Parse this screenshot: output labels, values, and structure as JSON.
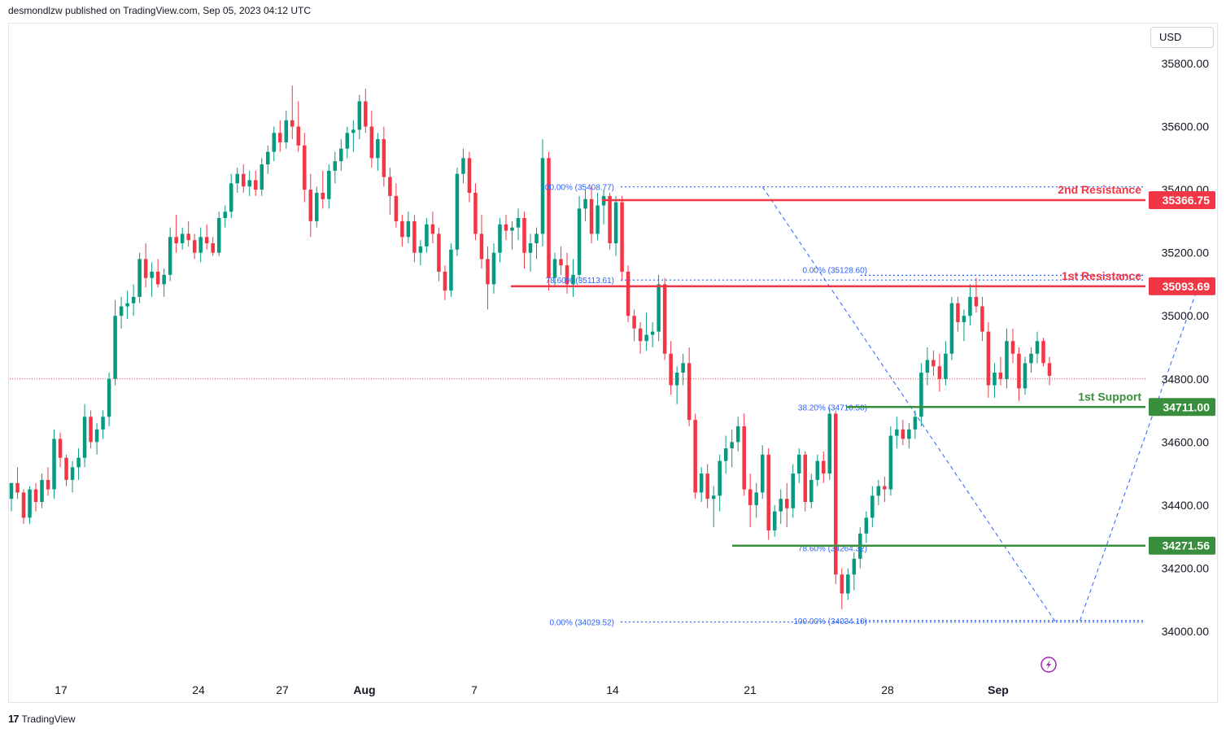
{
  "header": {
    "published": "desmondlzw published on TradingView.com, Sep 05, 2023 04:12 UTC"
  },
  "currency": "USD",
  "footer": {
    "brand": "TradingView",
    "logo_glyph": "17"
  },
  "icons": {
    "lightning": "lightning-icon"
  },
  "colors": {
    "up": "#089981",
    "down": "#f23645",
    "resistance": "#f23645",
    "support": "#388e3c",
    "fib": "#2962ff",
    "price_line": "#f23645"
  },
  "chart_data": {
    "type": "candlestick",
    "symbol_currency": "USD",
    "ylim": [
      33900,
      35900
    ],
    "y_ticks": [
      34000,
      34200,
      34400,
      34600,
      34800,
      35000,
      35200,
      35400,
      35600,
      35800
    ],
    "y_tick_labels": [
      "34000.00",
      "34200.00",
      "34400.00",
      "34600.00",
      "34800.00",
      "35000.00",
      "35200.00",
      "35400.00",
      "35600.00",
      "35800.00"
    ],
    "x_tick_labels": [
      "17",
      "24",
      "27",
      "Aug",
      "7",
      "14",
      "21",
      "28",
      "Sep"
    ],
    "current_price": 34800,
    "levels": [
      {
        "name": "2nd Resistance",
        "value": 35366.75,
        "label": "35366.75",
        "kind": "resistance"
      },
      {
        "name": "1st Resistance",
        "value": 35093.69,
        "label": "35093.69",
        "kind": "resistance"
      },
      {
        "name": "1st Support",
        "value": 34711.0,
        "label": "34711.00",
        "kind": "support"
      },
      {
        "name": "",
        "value": 34271.56,
        "label": "34271.56",
        "kind": "support"
      }
    ],
    "fib_labels": [
      {
        "text": "100.00% (35408.77)",
        "value": 35408.77
      },
      {
        "text": "78.60% (35113.61)",
        "value": 35113.61
      },
      {
        "text": "0.00% (34029.52)",
        "value": 34029.52
      },
      {
        "text": "0.00% (35128.60)",
        "value": 35128.6
      },
      {
        "text": "38.20% (34710.50)",
        "value": 34710.5
      },
      {
        "text": "78.60% (34264.32)",
        "value": 34264.32
      },
      {
        "text": "100.00% (34034.10)",
        "value": 34034.1
      }
    ],
    "candles": [
      [
        34420,
        34470,
        34380,
        34470
      ],
      [
        34470,
        34520,
        34420,
        34440
      ],
      [
        34440,
        34450,
        34340,
        34360
      ],
      [
        34360,
        34460,
        34340,
        34450
      ],
      [
        34450,
        34470,
        34380,
        34410
      ],
      [
        34410,
        34500,
        34390,
        34480
      ],
      [
        34480,
        34520,
        34430,
        34450
      ],
      [
        34450,
        34640,
        34420,
        34610
      ],
      [
        34610,
        34630,
        34520,
        34550
      ],
      [
        34550,
        34560,
        34460,
        34480
      ],
      [
        34480,
        34540,
        34440,
        34520
      ],
      [
        34520,
        34580,
        34480,
        34550
      ],
      [
        34550,
        34720,
        34520,
        34680
      ],
      [
        34680,
        34700,
        34580,
        34600
      ],
      [
        34600,
        34660,
        34560,
        34640
      ],
      [
        34640,
        34700,
        34610,
        34680
      ],
      [
        34680,
        34820,
        34650,
        34800
      ],
      [
        34800,
        35050,
        34780,
        35000
      ],
      [
        35000,
        35060,
        34960,
        35030
      ],
      [
        35030,
        35080,
        34990,
        35040
      ],
      [
        35040,
        35100,
        35000,
        35060
      ],
      [
        35060,
        35200,
        35040,
        35180
      ],
      [
        35180,
        35230,
        35090,
        35120
      ],
      [
        35120,
        35170,
        35060,
        35140
      ],
      [
        35140,
        35180,
        35090,
        35100
      ],
      [
        35100,
        35150,
        35060,
        35130
      ],
      [
        35130,
        35280,
        35110,
        35250
      ],
      [
        35250,
        35320,
        35200,
        35230
      ],
      [
        35230,
        35280,
        35210,
        35260
      ],
      [
        35260,
        35300,
        35220,
        35240
      ],
      [
        35240,
        35260,
        35180,
        35200
      ],
      [
        35200,
        35280,
        35170,
        35250
      ],
      [
        35250,
        35290,
        35210,
        35230
      ],
      [
        35230,
        35250,
        35190,
        35200
      ],
      [
        35200,
        35330,
        35190,
        35310
      ],
      [
        35310,
        35350,
        35280,
        35330
      ],
      [
        35330,
        35450,
        35310,
        35420
      ],
      [
        35420,
        35470,
        35390,
        35450
      ],
      [
        35450,
        35480,
        35390,
        35410
      ],
      [
        35410,
        35460,
        35380,
        35430
      ],
      [
        35430,
        35460,
        35380,
        35400
      ],
      [
        35400,
        35500,
        35380,
        35480
      ],
      [
        35480,
        35540,
        35450,
        35520
      ],
      [
        35520,
        35600,
        35490,
        35580
      ],
      [
        35580,
        35620,
        35520,
        35550
      ],
      [
        35550,
        35650,
        35530,
        35620
      ],
      [
        35620,
        35730,
        35560,
        35600
      ],
      [
        35600,
        35680,
        35520,
        35540
      ],
      [
        35540,
        35580,
        35360,
        35400
      ],
      [
        35400,
        35450,
        35250,
        35300
      ],
      [
        35300,
        35410,
        35280,
        35390
      ],
      [
        35390,
        35460,
        35340,
        35370
      ],
      [
        35370,
        35480,
        35340,
        35460
      ],
      [
        35460,
        35520,
        35420,
        35490
      ],
      [
        35490,
        35560,
        35460,
        35530
      ],
      [
        35530,
        35600,
        35500,
        35580
      ],
      [
        35580,
        35620,
        35520,
        35590
      ],
      [
        35590,
        35700,
        35560,
        35680
      ],
      [
        35680,
        35720,
        35580,
        35600
      ],
      [
        35600,
        35650,
        35470,
        35500
      ],
      [
        35500,
        35580,
        35460,
        35560
      ],
      [
        35560,
        35600,
        35410,
        35440
      ],
      [
        35440,
        35470,
        35320,
        35380
      ],
      [
        35380,
        35420,
        35280,
        35300
      ],
      [
        35300,
        35320,
        35220,
        35250
      ],
      [
        35250,
        35330,
        35230,
        35300
      ],
      [
        35300,
        35320,
        35170,
        35200
      ],
      [
        35200,
        35240,
        35160,
        35220
      ],
      [
        35220,
        35310,
        35200,
        35290
      ],
      [
        35290,
        35330,
        35230,
        35260
      ],
      [
        35260,
        35280,
        35110,
        35140
      ],
      [
        35140,
        35160,
        35050,
        35080
      ],
      [
        35080,
        35230,
        35060,
        35210
      ],
      [
        35210,
        35470,
        35190,
        35450
      ],
      [
        35450,
        35530,
        35420,
        35500
      ],
      [
        35500,
        35520,
        35360,
        35390
      ],
      [
        35390,
        35420,
        35240,
        35260
      ],
      [
        35260,
        35320,
        35150,
        35180
      ],
      [
        35180,
        35220,
        35020,
        35100
      ],
      [
        35100,
        35230,
        35070,
        35200
      ],
      [
        35200,
        35310,
        35170,
        35290
      ],
      [
        35290,
        35320,
        35240,
        35270
      ],
      [
        35270,
        35300,
        35210,
        35280
      ],
      [
        35280,
        35340,
        35240,
        35310
      ],
      [
        35310,
        35330,
        35150,
        35200
      ],
      [
        35200,
        35260,
        35140,
        35230
      ],
      [
        35230,
        35280,
        35180,
        35260
      ],
      [
        35260,
        35560,
        35220,
        35500
      ],
      [
        35500,
        35520,
        35080,
        35120
      ],
      [
        35120,
        35200,
        35090,
        35180
      ],
      [
        35180,
        35220,
        35130,
        35160
      ],
      [
        35160,
        35200,
        35070,
        35100
      ],
      [
        35100,
        35180,
        35060,
        35130
      ],
      [
        35130,
        35380,
        35110,
        35340
      ],
      [
        35340,
        35400,
        35300,
        35370
      ],
      [
        35370,
        35410,
        35230,
        35260
      ],
      [
        35260,
        35390,
        35240,
        35350
      ],
      [
        35350,
        35400,
        35290,
        35380
      ],
      [
        35380,
        35390,
        35210,
        35230
      ],
      [
        35230,
        35380,
        35190,
        35360
      ],
      [
        35360,
        35380,
        35110,
        35140
      ],
      [
        35140,
        35160,
        34980,
        35000
      ],
      [
        35000,
        35020,
        34920,
        34960
      ],
      [
        34960,
        34980,
        34880,
        34920
      ],
      [
        34920,
        35010,
        34890,
        34940
      ],
      [
        34940,
        34980,
        34900,
        34950
      ],
      [
        34950,
        35130,
        34920,
        35100
      ],
      [
        35100,
        35120,
        34860,
        34880
      ],
      [
        34880,
        34920,
        34750,
        34780
      ],
      [
        34780,
        34840,
        34720,
        34820
      ],
      [
        34820,
        34880,
        34780,
        34850
      ],
      [
        34850,
        34900,
        34650,
        34670
      ],
      [
        34670,
        34690,
        34420,
        34440
      ],
      [
        34440,
        34520,
        34410,
        34500
      ],
      [
        34500,
        34530,
        34390,
        34420
      ],
      [
        34420,
        34460,
        34330,
        34430
      ],
      [
        34430,
        34560,
        34380,
        34540
      ],
      [
        34540,
        34620,
        34500,
        34580
      ],
      [
        34580,
        34640,
        34520,
        34600
      ],
      [
        34600,
        34680,
        34570,
        34650
      ],
      [
        34650,
        34690,
        34430,
        34450
      ],
      [
        34450,
        34500,
        34330,
        34400
      ],
      [
        34400,
        34470,
        34360,
        34440
      ],
      [
        34440,
        34590,
        34420,
        34560
      ],
      [
        34560,
        34580,
        34290,
        34320
      ],
      [
        34320,
        34400,
        34300,
        34380
      ],
      [
        34380,
        34450,
        34340,
        34420
      ],
      [
        34420,
        34470,
        34330,
        34390
      ],
      [
        34390,
        34530,
        34360,
        34500
      ],
      [
        34500,
        34580,
        34470,
        34560
      ],
      [
        34560,
        34570,
        34380,
        34410
      ],
      [
        34410,
        34500,
        34390,
        34480
      ],
      [
        34480,
        34560,
        34460,
        34540
      ],
      [
        34540,
        34570,
        34470,
        34500
      ],
      [
        34500,
        34710,
        34480,
        34690
      ],
      [
        34690,
        34700,
        34150,
        34180
      ],
      [
        34180,
        34200,
        34070,
        34120
      ],
      [
        34120,
        34200,
        34100,
        34180
      ],
      [
        34180,
        34250,
        34130,
        34230
      ],
      [
        34230,
        34330,
        34200,
        34310
      ],
      [
        34310,
        34380,
        34280,
        34360
      ],
      [
        34360,
        34460,
        34330,
        34430
      ],
      [
        34430,
        34480,
        34400,
        34460
      ],
      [
        34460,
        34490,
        34410,
        34450
      ],
      [
        34450,
        34650,
        34430,
        34620
      ],
      [
        34620,
        34680,
        34580,
        34640
      ],
      [
        34640,
        34670,
        34590,
        34610
      ],
      [
        34610,
        34660,
        34580,
        34640
      ],
      [
        34640,
        34700,
        34610,
        34680
      ],
      [
        34680,
        34850,
        34650,
        34820
      ],
      [
        34820,
        34900,
        34780,
        34860
      ],
      [
        34860,
        34890,
        34810,
        34840
      ],
      [
        34840,
        34880,
        34760,
        34800
      ],
      [
        34800,
        34920,
        34780,
        34880
      ],
      [
        34880,
        35060,
        34860,
        35040
      ],
      [
        35040,
        35060,
        34950,
        34980
      ],
      [
        34980,
        35020,
        34920,
        35000
      ],
      [
        35000,
        35100,
        34970,
        35060
      ],
      [
        35060,
        35120,
        35010,
        35030
      ],
      [
        35030,
        35060,
        34920,
        34950
      ],
      [
        34950,
        34980,
        34740,
        34780
      ],
      [
        34780,
        34850,
        34740,
        34820
      ],
      [
        34820,
        34870,
        34780,
        34800
      ],
      [
        34800,
        34960,
        34770,
        34920
      ],
      [
        34920,
        34960,
        34850,
        34880
      ],
      [
        34880,
        34900,
        34730,
        34770
      ],
      [
        34770,
        34870,
        34750,
        34850
      ],
      [
        34850,
        34900,
        34820,
        34880
      ],
      [
        34880,
        34950,
        34850,
        34920
      ],
      [
        34920,
        34930,
        34840,
        34850
      ],
      [
        34850,
        34870,
        34780,
        34810
      ]
    ]
  }
}
